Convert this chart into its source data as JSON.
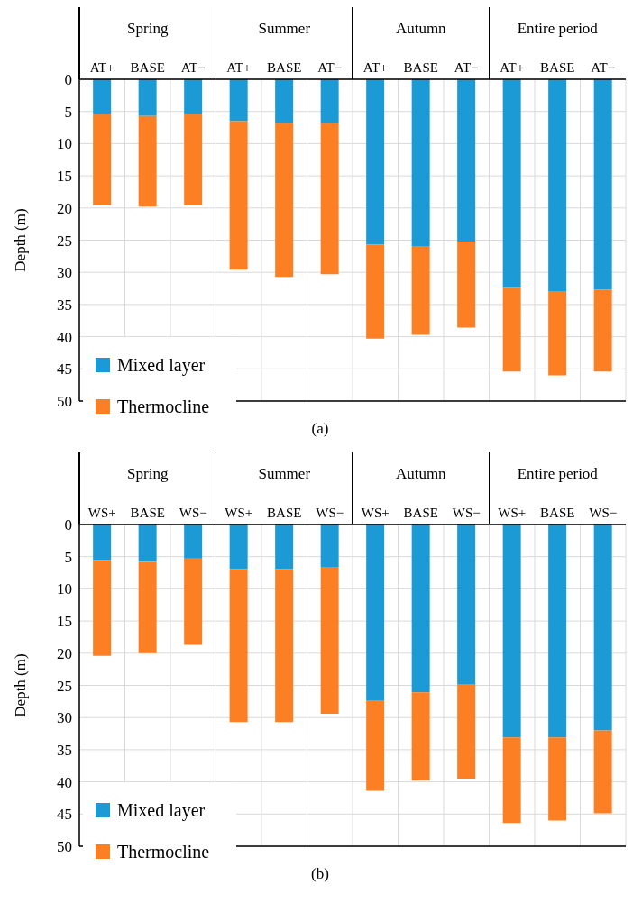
{
  "chart_data": [
    {
      "type": "bar",
      "title": "(a)",
      "ylabel": "Depth (m)",
      "stacked": true,
      "categories": [
        "AT+",
        "BASE",
        "AT−",
        "AT+",
        "BASE",
        "AT−",
        "AT+",
        "BASE",
        "AT−",
        "AT+",
        "BASE",
        "AT−"
      ],
      "annotations": [
        "Spring",
        "Summer",
        "Autumn",
        "Entire period"
      ],
      "series": [
        {
          "name": "Mixed layer",
          "color": "#1b9ad6",
          "values": [
            5.4,
            5.7,
            5.4,
            6.5,
            6.8,
            6.8,
            25.7,
            25.9,
            25.2,
            32.4,
            32.9,
            32.7
          ]
        },
        {
          "name": "Thermocline",
          "color": "#fd7f23",
          "values": [
            14.2,
            14.1,
            14.2,
            23.1,
            23.9,
            23.5,
            14.6,
            13.8,
            13.4,
            13.0,
            13.1,
            12.7
          ]
        }
      ],
      "ylim": [
        50,
        0
      ],
      "yticks": [
        0,
        5,
        10,
        15,
        20,
        25,
        30,
        35,
        40,
        45,
        50
      ],
      "grid": true,
      "legend": "bottom left"
    },
    {
      "type": "bar",
      "title": "(b)",
      "ylabel": "Depth (m)",
      "stacked": true,
      "categories": [
        "WS+",
        "BASE",
        "WS−",
        "WS+",
        "BASE",
        "WS−",
        "WS+",
        "BASE",
        "WS−",
        "WS+",
        "BASE",
        "WS−"
      ],
      "annotations": [
        "Spring",
        "Summer",
        "Autumn",
        "Entire period"
      ],
      "series": [
        {
          "name": "Mixed layer",
          "color": "#1b9ad6",
          "values": [
            5.5,
            5.8,
            5.3,
            6.9,
            6.9,
            6.6,
            27.4,
            26.1,
            24.8,
            33.1,
            33.1,
            32.0
          ]
        },
        {
          "name": "Thermocline",
          "color": "#fd7f23",
          "values": [
            14.9,
            14.2,
            13.4,
            23.8,
            23.8,
            22.8,
            14.0,
            13.7,
            14.7,
            13.3,
            12.9,
            12.9
          ]
        }
      ],
      "ylim": [
        50,
        0
      ],
      "yticks": [
        0,
        5,
        10,
        15,
        20,
        25,
        30,
        35,
        40,
        45,
        50
      ],
      "grid": true,
      "legend": "bottom left"
    }
  ]
}
